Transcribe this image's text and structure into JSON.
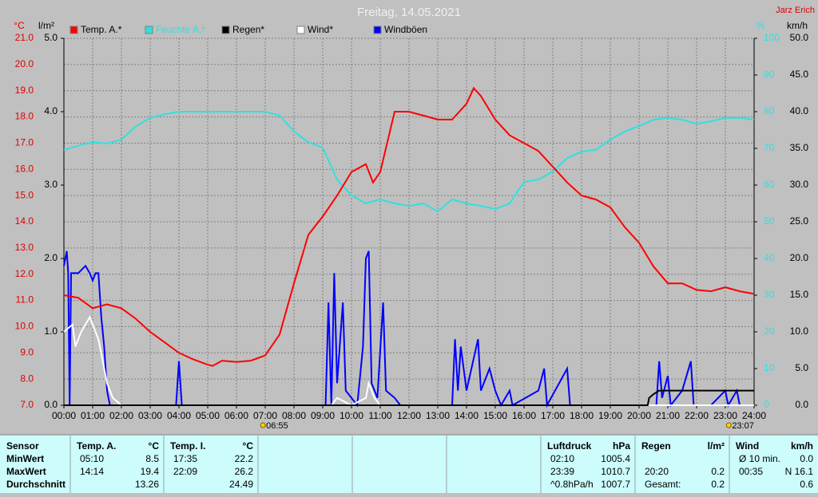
{
  "chart_data": {
    "type": "line",
    "title": "Freitag, 14.05.2021",
    "author": "Jarz Erich",
    "y_label": "°C",
    "y2_label": "l/m²",
    "y3_label": "%",
    "y4_label": "km/h",
    "xlim": [
      0,
      24
    ],
    "xticks": [
      {
        "value": 0,
        "label": "00:00"
      },
      {
        "value": 1,
        "label": "01:00"
      },
      {
        "value": 2,
        "label": "02:00"
      },
      {
        "value": 3,
        "label": "03:00"
      },
      {
        "value": 4,
        "label": "04:00"
      },
      {
        "value": 5,
        "label": "05:00"
      },
      {
        "value": 6,
        "label": "06:00"
      },
      {
        "value": 7,
        "label": "07:00"
      },
      {
        "value": 8,
        "label": "08:00"
      },
      {
        "value": 9,
        "label": "09:00"
      },
      {
        "value": 10,
        "label": "10:00"
      },
      {
        "value": 11,
        "label": "11:00"
      },
      {
        "value": 12,
        "label": "12:00"
      },
      {
        "value": 13,
        "label": "13:00"
      },
      {
        "value": 14,
        "label": "14:00"
      },
      {
        "value": 15,
        "label": "15:00"
      },
      {
        "value": 16,
        "label": "16:00"
      },
      {
        "value": 17,
        "label": "17:00"
      },
      {
        "value": 18,
        "label": "18:00"
      },
      {
        "value": 19,
        "label": "19:00"
      },
      {
        "value": 20,
        "label": "20:00"
      },
      {
        "value": 21,
        "label": "21:00"
      },
      {
        "value": 22,
        "label": "22:00"
      },
      {
        "value": 23,
        "label": "23:00"
      },
      {
        "value": 24,
        "label": "24:00"
      }
    ],
    "ylim": [
      7,
      21
    ],
    "yticks": [
      {
        "value": 7,
        "label": "7.0"
      },
      {
        "value": 8,
        "label": "8.0"
      },
      {
        "value": 9,
        "label": "9.0"
      },
      {
        "value": 10,
        "label": "10.0"
      },
      {
        "value": 11,
        "label": "11.0"
      },
      {
        "value": 12,
        "label": "12.0"
      },
      {
        "value": 13,
        "label": "13.0"
      },
      {
        "value": 14,
        "label": "14.0"
      },
      {
        "value": 15,
        "label": "15.0"
      },
      {
        "value": 16,
        "label": "16.0"
      },
      {
        "value": 17,
        "label": "17.0"
      },
      {
        "value": 18,
        "label": "18.0"
      },
      {
        "value": 19,
        "label": "19.0"
      },
      {
        "value": 20,
        "label": "20.0"
      },
      {
        "value": 21,
        "label": "21.0"
      }
    ],
    "y2lim": [
      0,
      5
    ],
    "y2ticks": [
      {
        "value": 0,
        "label": "0.0"
      },
      {
        "value": 1,
        "label": "1.0"
      },
      {
        "value": 2,
        "label": "2.0"
      },
      {
        "value": 3,
        "label": "3.0"
      },
      {
        "value": 4,
        "label": "4.0"
      },
      {
        "value": 5,
        "label": "5.0"
      }
    ],
    "y3lim": [
      0,
      100
    ],
    "y3ticks": [
      0,
      10,
      20,
      30,
      40,
      50,
      60,
      70,
      80,
      90,
      100
    ],
    "y4lim": [
      0,
      50
    ],
    "y4ticks": [
      {
        "value": 0,
        "label": "0.0"
      },
      {
        "value": 5,
        "label": "5.0"
      },
      {
        "value": 10,
        "label": "10.0"
      },
      {
        "value": 15,
        "label": "15.0"
      },
      {
        "value": 20,
        "label": "20.0"
      },
      {
        "value": 25,
        "label": "25.0"
      },
      {
        "value": 30,
        "label": "30.0"
      },
      {
        "value": 35,
        "label": "35.0"
      },
      {
        "value": 40,
        "label": "40.0"
      },
      {
        "value": 45,
        "label": "45.0"
      },
      {
        "value": 50,
        "label": "50.0"
      }
    ],
    "grid": true,
    "series": [
      {
        "name": "Temp. A.*",
        "color": "#ff0000",
        "axis": "y",
        "x": [
          0,
          0.5,
          1,
          1.5,
          2,
          2.5,
          3,
          3.5,
          4,
          4.5,
          5,
          5.17,
          5.5,
          6,
          6.5,
          7,
          7.5,
          8,
          8.5,
          9,
          9.5,
          10,
          10.5,
          10.75,
          11,
          11.5,
          12,
          12.5,
          13,
          13.5,
          14,
          14.25,
          14.5,
          15,
          15.5,
          16,
          16.5,
          17,
          17.5,
          18,
          18.5,
          19,
          19.5,
          20,
          20.5,
          21,
          21.5,
          22,
          22.5,
          23,
          23.5,
          24
        ],
        "values": [
          11.2,
          11.1,
          10.7,
          10.85,
          10.7,
          10.3,
          9.8,
          9.4,
          9.0,
          8.75,
          8.55,
          8.5,
          8.7,
          8.65,
          8.7,
          8.9,
          9.7,
          11.65,
          13.5,
          14.2,
          15.0,
          15.9,
          16.2,
          15.5,
          15.9,
          18.2,
          18.2,
          18.05,
          17.9,
          17.9,
          18.5,
          19.1,
          18.8,
          17.9,
          17.3,
          17.0,
          16.7,
          16.1,
          15.5,
          15.0,
          14.85,
          14.55,
          13.8,
          13.2,
          12.3,
          11.65,
          11.65,
          11.4,
          11.35,
          11.5,
          11.35,
          11.25
        ]
      },
      {
        "name": "Feuchte A.*",
        "color": "#30e0e0",
        "axis": "y3",
        "x": [
          0,
          0.5,
          1,
          1.5,
          2,
          2.5,
          3,
          3.5,
          4,
          5,
          6,
          7,
          7.5,
          8,
          8.5,
          9,
          9.5,
          10,
          10.5,
          11,
          11.5,
          12,
          12.5,
          13,
          13.5,
          14,
          14.5,
          15,
          15.5,
          16,
          16.5,
          17,
          17.5,
          18,
          18.5,
          19,
          19.5,
          20,
          20.5,
          21,
          21.5,
          22,
          22.5,
          23,
          23.5,
          24
        ],
        "values": [
          69.6,
          70.7,
          71.7,
          71.3,
          72.4,
          76,
          78.3,
          79.3,
          80,
          80,
          80,
          80,
          79,
          74.6,
          71.7,
          70.2,
          61.5,
          57.2,
          55,
          56.1,
          55,
          54.3,
          55,
          52.8,
          56.1,
          55,
          54.3,
          53.5,
          55,
          60.9,
          61.5,
          63.7,
          67.4,
          69.1,
          69.6,
          72.4,
          74.6,
          76.1,
          77.8,
          78.3,
          77.8,
          76.7,
          77.4,
          78.3,
          78.3,
          77.8
        ]
      },
      {
        "name": "Regen*",
        "color": "#000000",
        "axis": "y2",
        "x": [
          0,
          20.3,
          20.35,
          20.5,
          20.7,
          24
        ],
        "values": [
          0,
          0,
          0.1,
          0.15,
          0.2,
          0.2
        ]
      },
      {
        "name": "Wind*",
        "color": "#ffffff",
        "axis": "y4",
        "x": [
          0,
          0.3,
          0.4,
          0.6,
          0.9,
          1.2,
          1.4,
          1.5,
          1.7,
          2,
          9.3,
          9.5,
          10,
          10.5,
          10.6,
          10.8,
          11,
          24
        ],
        "values": [
          10,
          11,
          8,
          10,
          12,
          9,
          5,
          3,
          1,
          0,
          0,
          1,
          0,
          1,
          3,
          1,
          0,
          0
        ]
      },
      {
        "name": "Windböen",
        "color": "#0000ff",
        "axis": "y4",
        "x": [
          0,
          0.1,
          0.15,
          0.2,
          0.25,
          0.5,
          0.75,
          0.9,
          1,
          1.1,
          1.2,
          1.3,
          1.4,
          1.5,
          1.6,
          3.9,
          4,
          4.1,
          9.1,
          9.2,
          9.3,
          9.4,
          9.5,
          9.7,
          9.8,
          10,
          10.2,
          10.4,
          10.5,
          10.6,
          10.7,
          10.9,
          11.1,
          11.2,
          11.5,
          11.7,
          13.5,
          13.6,
          13.7,
          13.8,
          14,
          14.4,
          14.5,
          14.8,
          15,
          15.2,
          15.5,
          15.6,
          16.5,
          16.7,
          16.8,
          17.5,
          17.6,
          20.6,
          20.7,
          20.8,
          21,
          21.1,
          21.5,
          21.8,
          21.9,
          22.5,
          23,
          23.1,
          23.4,
          23.5,
          24
        ],
        "values": [
          19,
          21,
          18,
          0,
          18,
          18,
          19,
          18,
          17,
          18,
          18,
          12,
          8,
          2,
          0,
          0,
          6,
          0,
          0,
          14,
          0,
          18,
          3,
          14,
          2,
          1,
          0,
          8,
          20,
          21,
          3,
          1,
          14,
          2,
          1,
          0,
          0,
          9,
          2,
          8,
          2,
          9,
          2,
          5,
          2,
          0,
          2,
          0,
          2,
          5,
          0,
          5,
          0,
          0,
          6,
          1,
          4,
          0,
          2,
          6,
          0,
          0,
          2,
          0,
          2,
          0,
          0
        ]
      }
    ],
    "annotations": [
      {
        "text": "06:55",
        "x": 6.92
      },
      {
        "text": "23:07",
        "x": 23.12
      }
    ]
  },
  "table": {
    "header": "Sensor",
    "row_labels": [
      "MinWert",
      "MaxWert",
      "Durchschnitt"
    ],
    "groups": [
      {
        "name": "Temp. A.",
        "unit": "°C",
        "rows": [
          [
            "05:10",
            "8.5"
          ],
          [
            "14:14",
            "19.4"
          ],
          [
            null,
            "13.26"
          ]
        ]
      },
      {
        "name": "Temp. I.",
        "unit": "°C",
        "rows": [
          [
            "17:35",
            "22.2"
          ],
          [
            "22:09",
            "26.2"
          ],
          [
            null,
            "24.49"
          ]
        ]
      },
      {
        "name": "Luftdruck",
        "unit": "hPa",
        "rows": [
          [
            "02:10",
            "1005.4"
          ],
          [
            "23:39",
            "1010.7"
          ],
          [
            "^0.8hPa/h",
            "1007.7"
          ]
        ]
      },
      {
        "name": "Regen",
        "unit": "l/m²",
        "rows": [
          [
            null,
            null
          ],
          [
            "20:20",
            "0.2"
          ],
          [
            "Gesamt:",
            "0.2"
          ]
        ]
      },
      {
        "name": "Wind",
        "unit": "km/h",
        "rows": [
          [
            "Ø 10 min.",
            "0.0"
          ],
          [
            "00:35",
            "N 16.1"
          ],
          [
            null,
            "0.6"
          ]
        ]
      }
    ]
  }
}
